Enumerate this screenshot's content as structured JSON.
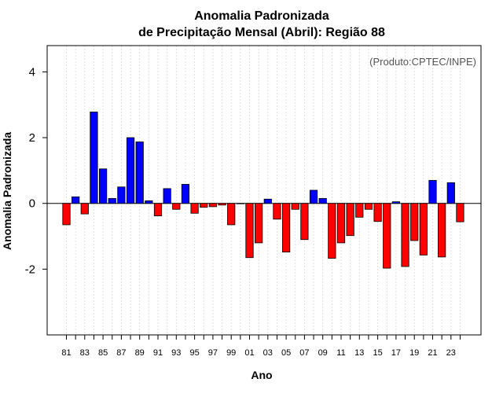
{
  "chart_data": {
    "type": "bar",
    "title_line1": "Anomalia Padronizada",
    "title_line2": "de Precipitação Mensal (Abril): Região 88",
    "xlabel": "Ano",
    "ylabel": "Anomalia Padronizada",
    "credit": "(Produto:CPTEC/INPE)",
    "ylim": [
      -4,
      4.8
    ],
    "yticks": [
      -2,
      0,
      2,
      4
    ],
    "ytick_labels": [
      "-2",
      "0",
      "2",
      "4"
    ],
    "categories": [
      "81",
      "82",
      "83",
      "84",
      "85",
      "86",
      "87",
      "88",
      "89",
      "90",
      "91",
      "92",
      "93",
      "94",
      "95",
      "96",
      "97",
      "98",
      "99",
      "00",
      "01",
      "02",
      "03",
      "04",
      "05",
      "06",
      "07",
      "08",
      "09",
      "10",
      "11",
      "12",
      "13",
      "14",
      "15",
      "16",
      "17",
      "18",
      "19",
      "20",
      "21",
      "22",
      "23",
      "24"
    ],
    "values": [
      -0.65,
      0.2,
      -0.32,
      2.78,
      1.05,
      0.15,
      0.5,
      2.0,
      1.87,
      0.08,
      -0.38,
      0.45,
      -0.18,
      0.58,
      -0.3,
      -0.12,
      -0.1,
      -0.05,
      -0.65,
      0.0,
      -1.65,
      -1.2,
      0.13,
      -0.48,
      -1.48,
      -0.18,
      -1.1,
      0.4,
      0.15,
      -1.67,
      -1.2,
      -0.98,
      -0.42,
      -0.18,
      -0.55,
      -1.97,
      0.05,
      -1.92,
      -1.13,
      -1.57,
      0.7,
      -1.63,
      0.63,
      -0.56
    ],
    "xtick_labels": [
      "81",
      "83",
      "85",
      "87",
      "89",
      "91",
      "93",
      "95",
      "97",
      "99",
      "01",
      "03",
      "05",
      "07",
      "09",
      "11",
      "13",
      "15",
      "17",
      "19",
      "21",
      "23"
    ],
    "positive_color": "#0000ff",
    "negative_color": "#ff0000"
  }
}
